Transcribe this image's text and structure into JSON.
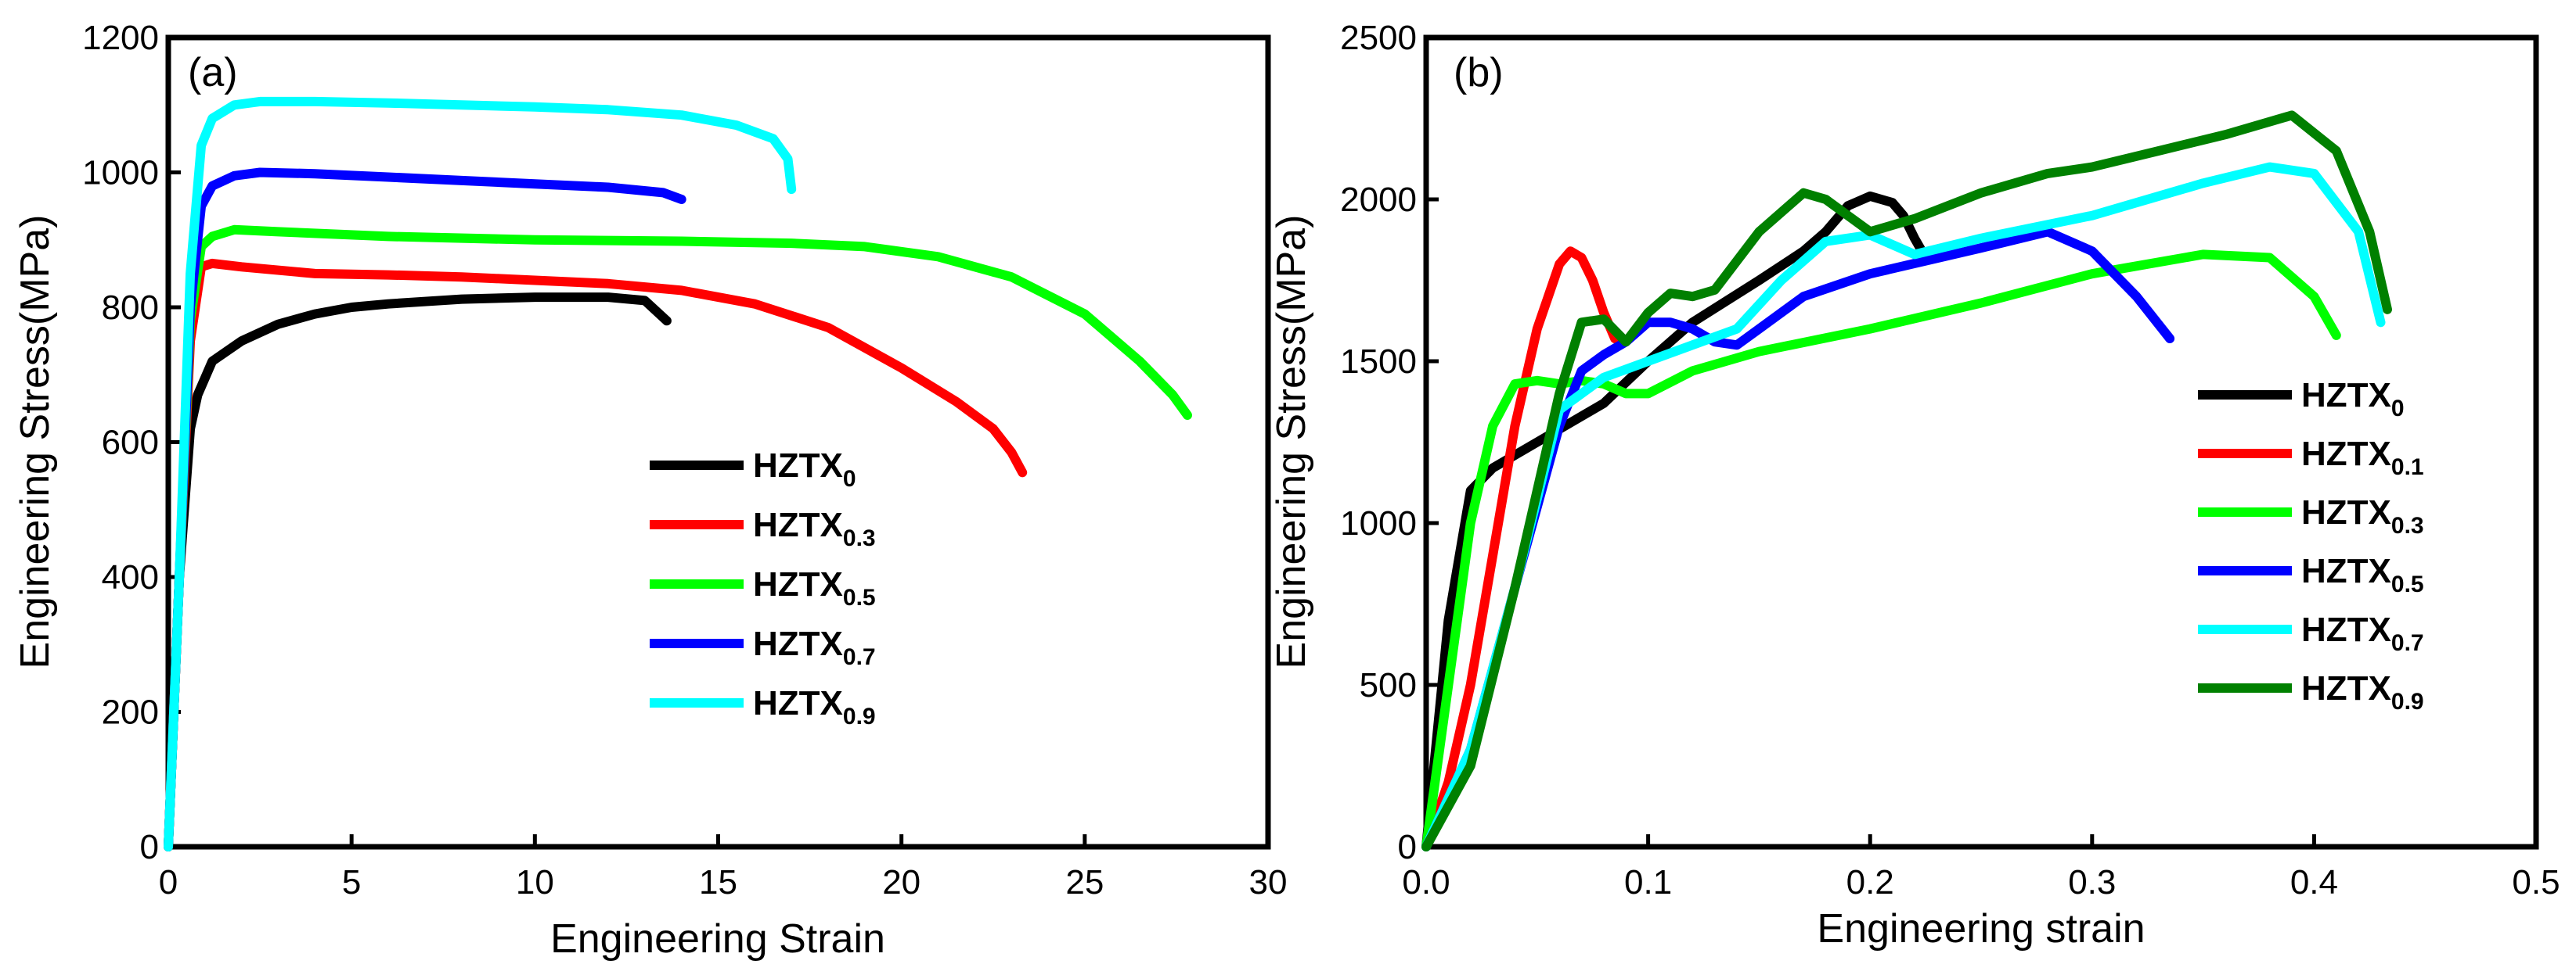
{
  "chart_data": [
    {
      "type": "line",
      "panel_label": "(a)",
      "xlabel": "Engineering Strain",
      "ylabel": "Engineering Stress(MPa)",
      "xlim": [
        0,
        30
      ],
      "ylim": [
        0,
        1200
      ],
      "xticks": [
        0,
        5,
        10,
        15,
        20,
        25,
        30
      ],
      "yticks": [
        0,
        200,
        400,
        600,
        800,
        1000,
        1200
      ],
      "legend_position": "center-right",
      "series": [
        {
          "name": "HZTX",
          "subscript": "0",
          "color": "#000000",
          "x": [
            0,
            0.3,
            0.6,
            0.8,
            1.2,
            2,
            3,
            4,
            5,
            6,
            8,
            10,
            12,
            13,
            13.6
          ],
          "y": [
            0,
            400,
            620,
            670,
            720,
            750,
            775,
            790,
            800,
            805,
            812,
            815,
            815,
            810,
            780
          ]
        },
        {
          "name": "HZTX",
          "subscript": "0.3",
          "color": "#ff0000",
          "x": [
            0,
            0.3,
            0.6,
            0.9,
            1.2,
            2,
            4,
            6,
            8,
            10,
            12,
            14,
            16,
            18,
            20,
            21.5,
            22.5,
            23,
            23.3
          ],
          "y": [
            0,
            400,
            750,
            860,
            865,
            860,
            850,
            848,
            845,
            840,
            835,
            825,
            805,
            770,
            710,
            660,
            620,
            585,
            555
          ]
        },
        {
          "name": "HZTX",
          "subscript": "0.5",
          "color": "#00ff00",
          "x": [
            0,
            0.3,
            0.6,
            0.9,
            1.2,
            1.8,
            3,
            6,
            10,
            14,
            17,
            19,
            21,
            23,
            25,
            26.5,
            27.4,
            27.8
          ],
          "y": [
            0,
            400,
            780,
            890,
            905,
            915,
            912,
            905,
            900,
            898,
            895,
            890,
            875,
            845,
            790,
            720,
            670,
            640
          ]
        },
        {
          "name": "HZTX",
          "subscript": "0.7",
          "color": "#0000ff",
          "x": [
            0,
            0.3,
            0.6,
            0.9,
            1.2,
            1.8,
            2.5,
            4,
            6,
            8,
            10,
            12,
            13.5,
            14
          ],
          "y": [
            0,
            400,
            800,
            950,
            980,
            995,
            1000,
            998,
            993,
            988,
            983,
            978,
            970,
            960
          ]
        },
        {
          "name": "HZTX",
          "subscript": "0.9",
          "color": "#00ffff",
          "x": [
            0,
            0.3,
            0.6,
            0.9,
            1.2,
            1.8,
            2.5,
            4,
            6,
            8,
            10,
            12,
            14,
            15.5,
            16.5,
            16.9,
            17
          ],
          "y": [
            0,
            400,
            850,
            1040,
            1080,
            1100,
            1105,
            1105,
            1103,
            1100,
            1097,
            1093,
            1085,
            1070,
            1050,
            1020,
            975
          ]
        }
      ]
    },
    {
      "type": "line",
      "panel_label": "(b)",
      "xlabel": "Engineering strain",
      "ylabel": "Engineering Stress(MPa)",
      "xlim": [
        0.0,
        0.5
      ],
      "ylim": [
        0,
        2500
      ],
      "xticks": [
        "0.0",
        "0.1",
        "0.2",
        "0.3",
        "0.4",
        "0.5"
      ],
      "yticks": [
        0,
        500,
        1000,
        1500,
        2000,
        2500
      ],
      "legend_position": "center-right",
      "series": [
        {
          "name": "HZTX",
          "subscript": "0",
          "color": "#000000",
          "x": [
            0,
            0.01,
            0.02,
            0.03,
            0.05,
            0.08,
            0.1,
            0.12,
            0.15,
            0.17,
            0.18,
            0.19,
            0.2,
            0.21,
            0.215,
            0.22,
            0.225
          ],
          "y": [
            0,
            700,
            1100,
            1170,
            1250,
            1370,
            1500,
            1620,
            1750,
            1840,
            1900,
            1980,
            2010,
            1990,
            1950,
            1880,
            1820
          ]
        },
        {
          "name": "HZTX",
          "subscript": "0.1",
          "color": "#ff0000",
          "x": [
            0,
            0.01,
            0.02,
            0.03,
            0.04,
            0.05,
            0.06,
            0.065,
            0.07,
            0.075,
            0.08,
            0.085
          ],
          "y": [
            0,
            200,
            500,
            900,
            1300,
            1600,
            1800,
            1840,
            1820,
            1750,
            1650,
            1570
          ]
        },
        {
          "name": "HZTX",
          "subscript": "0.3",
          "color": "#00ff00",
          "x": [
            0,
            0.01,
            0.02,
            0.03,
            0.04,
            0.05,
            0.06,
            0.07,
            0.08,
            0.09,
            0.1,
            0.12,
            0.15,
            0.2,
            0.25,
            0.3,
            0.35,
            0.38,
            0.4,
            0.41
          ],
          "y": [
            0,
            500,
            1000,
            1300,
            1430,
            1440,
            1430,
            1440,
            1430,
            1400,
            1400,
            1470,
            1530,
            1600,
            1680,
            1770,
            1830,
            1820,
            1700,
            1580
          ]
        },
        {
          "name": "HZTX",
          "subscript": "0.5",
          "color": "#0000ff",
          "x": [
            0,
            0.02,
            0.04,
            0.06,
            0.07,
            0.08,
            0.09,
            0.1,
            0.11,
            0.12,
            0.13,
            0.14,
            0.15,
            0.17,
            0.2,
            0.25,
            0.28,
            0.3,
            0.32,
            0.335
          ],
          "y": [
            0,
            300,
            800,
            1300,
            1470,
            1520,
            1560,
            1620,
            1620,
            1600,
            1560,
            1550,
            1600,
            1700,
            1770,
            1850,
            1900,
            1840,
            1700,
            1570
          ]
        },
        {
          "name": "HZTX",
          "subscript": "0.7",
          "color": "#00ffff",
          "x": [
            0,
            0.02,
            0.04,
            0.06,
            0.08,
            0.1,
            0.12,
            0.14,
            0.16,
            0.18,
            0.2,
            0.22,
            0.25,
            0.3,
            0.35,
            0.38,
            0.4,
            0.42,
            0.43
          ],
          "y": [
            0,
            300,
            800,
            1350,
            1450,
            1500,
            1550,
            1600,
            1750,
            1870,
            1890,
            1830,
            1880,
            1950,
            2050,
            2100,
            2080,
            1900,
            1620
          ]
        },
        {
          "name": "HZTX",
          "subscript": "0.9",
          "color": "#008000",
          "x": [
            0,
            0.02,
            0.04,
            0.06,
            0.07,
            0.08,
            0.09,
            0.1,
            0.11,
            0.12,
            0.13,
            0.15,
            0.17,
            0.18,
            0.19,
            0.2,
            0.22,
            0.25,
            0.28,
            0.3,
            0.33,
            0.36,
            0.39,
            0.41,
            0.425,
            0.433
          ],
          "y": [
            0,
            250,
            800,
            1400,
            1620,
            1630,
            1560,
            1650,
            1710,
            1700,
            1720,
            1900,
            2020,
            2000,
            1950,
            1900,
            1940,
            2020,
            2080,
            2100,
            2150,
            2200,
            2260,
            2150,
            1900,
            1660
          ]
        }
      ]
    }
  ]
}
